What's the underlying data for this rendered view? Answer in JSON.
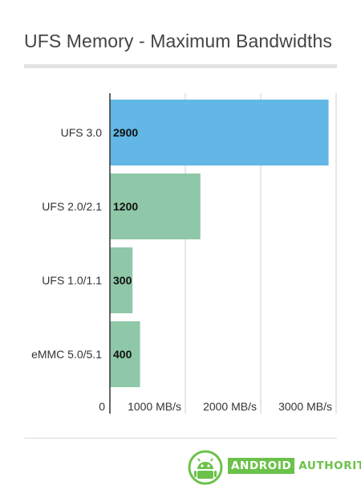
{
  "title": "UFS Memory - Maximum Bandwidths",
  "colors": {
    "highlight": "#62b7e6",
    "bar": "#8fc8a8",
    "grid": "#cfcfcf",
    "axis": "#333333",
    "brand": "#6bc24a"
  },
  "chart_data": {
    "type": "bar",
    "orientation": "horizontal",
    "title": "UFS Memory - Maximum Bandwidths",
    "categories": [
      "UFS 3.0",
      "UFS 2.0/2.1",
      "UFS 1.0/1.1",
      "eMMC 5.0/5.1"
    ],
    "values": [
      2900,
      1200,
      300,
      400
    ],
    "highlight_index": 0,
    "xlim": [
      0,
      3000
    ],
    "xticks": [
      0,
      1000,
      2000,
      3000
    ],
    "xtick_labels": [
      "0",
      "1000 MB/s",
      "2000 MB/s",
      "3000 MB/s"
    ],
    "grid": true,
    "legend": "none"
  },
  "logo": {
    "name": "android-authority-logo",
    "text_a": "ANDROID",
    "text_b": "AUTHORITY"
  }
}
